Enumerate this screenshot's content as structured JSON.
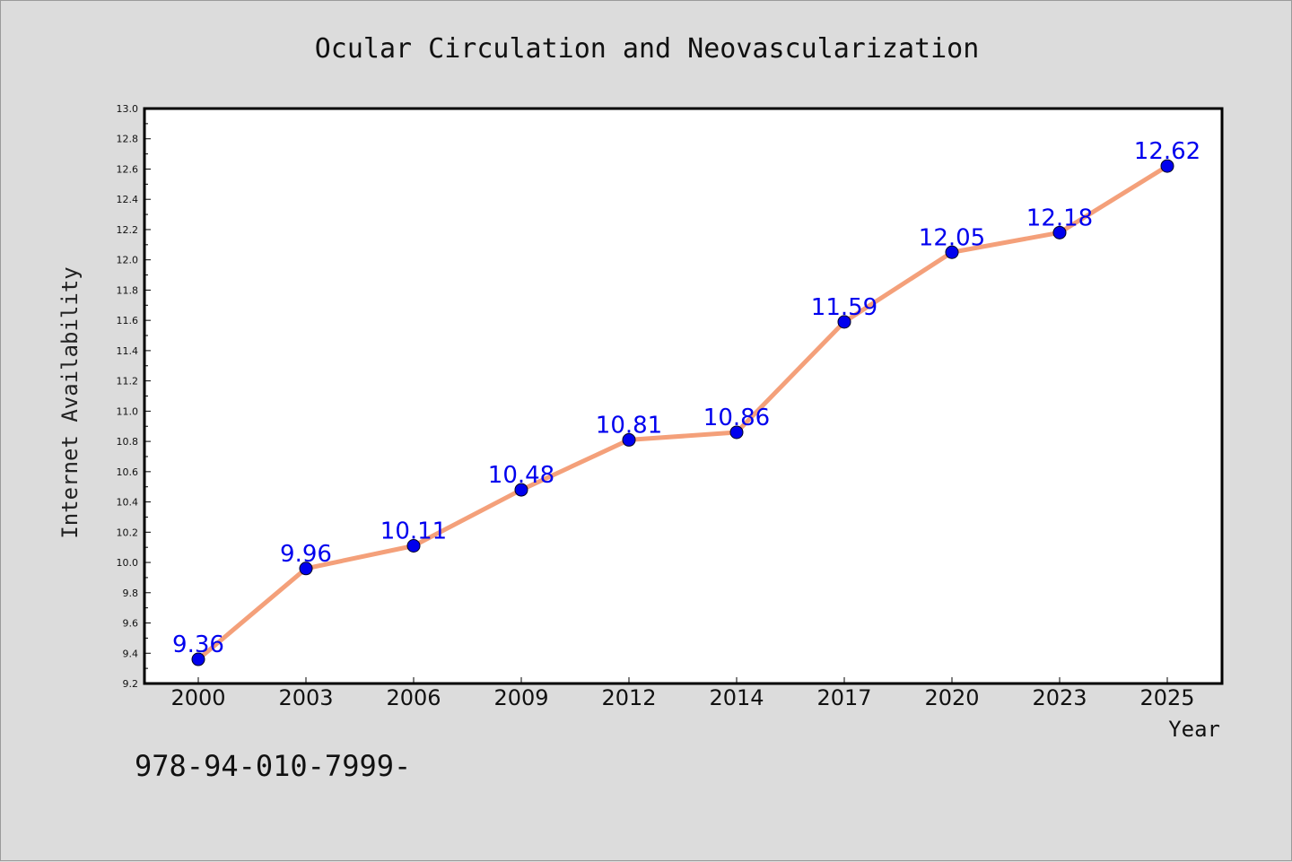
{
  "chart_data": {
    "type": "line",
    "title": "Ocular Circulation and Neovascularization",
    "xlabel": "Year",
    "ylabel": "Internet Availability",
    "categories": [
      "2000",
      "2003",
      "2006",
      "2009",
      "2012",
      "2014",
      "2017",
      "2020",
      "2023",
      "2025"
    ],
    "series": [
      {
        "values": [
          9.36,
          9.96,
          10.11,
          10.48,
          10.81,
          10.86,
          11.59,
          12.05,
          12.18,
          12.62
        ],
        "data_labels": [
          "9.36",
          "9.96",
          "10.11",
          "10.48",
          "10.81",
          "10.86",
          "11.59",
          "12.05",
          "12.18",
          "12.62"
        ],
        "line_color": "#f4a07a",
        "marker_color": "#0000ee"
      }
    ],
    "ylim": [
      9.2,
      13.0
    ],
    "yticks": [
      "9.2",
      "9.4",
      "9.6",
      "9.8",
      "10.0",
      "10.2",
      "10.4",
      "10.6",
      "10.8",
      "11.0",
      "11.2",
      "11.4",
      "11.6",
      "11.8",
      "12.0",
      "12.2",
      "12.4",
      "12.6",
      "12.8",
      "13.0"
    ],
    "grid": false,
    "label_color": "#0000ee"
  },
  "footer": {
    "text": "978-94-010-7999-"
  }
}
